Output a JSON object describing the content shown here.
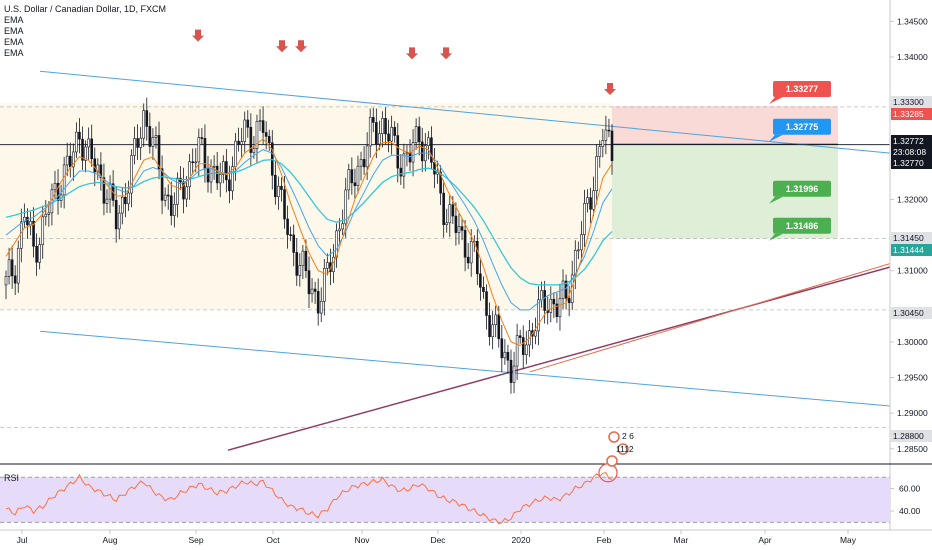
{
  "header": {
    "symbol_title": "U.S. Dollar / Canadian Dollar, 1D, FXCM",
    "indicators": [
      "EMA",
      "EMA",
      "EMA",
      "EMA"
    ]
  },
  "rsi_panel": {
    "label": "RSI"
  },
  "colors": {
    "up": "#ffffff",
    "down": "#131722",
    "ema_fast": "#f57f17",
    "ema_mid": "#42a5f5",
    "ema_slow": "#26c6da",
    "channel": "#4fa3e0",
    "trendline": "#8e3b64",
    "trendline2": "#e26a4c",
    "rsi_line": "#ff7043",
    "rsi_band": "#e6dcfa",
    "arrow": "#d9534f",
    "loss_zone": "#f9d6d3",
    "profit_zone": "#dcedd3"
  },
  "chart_data": [
    {
      "type": "candlestick",
      "title": "U.S. Dollar / Canadian Dollar, 1D, FXCM",
      "x_axis_labels": [
        "Jul",
        "Aug",
        "Sep",
        "Oct",
        "Nov",
        "Dec",
        "2020",
        "Feb",
        "Mar",
        "Apr",
        "May"
      ],
      "y_tick_labels": [
        "1.34500",
        "1.34000",
        "1.32000",
        "1.31000",
        "1.30000",
        "1.29500",
        "1.29000",
        "1.28500"
      ],
      "price_tags": [
        {
          "value": "1.33300",
          "style": "gray"
        },
        {
          "value": "1.33285",
          "style": "red"
        },
        {
          "value": "1.32772",
          "style": "black"
        },
        {
          "value": "23:08:08",
          "style": "black"
        },
        {
          "value": "1.32770",
          "style": "black"
        },
        {
          "value": "1.31450",
          "style": "gray"
        },
        {
          "value": "1.31444",
          "style": "green"
        },
        {
          "value": "1.30450",
          "style": "gray"
        },
        {
          "value": "1.28800",
          "style": "gray"
        }
      ],
      "position_labels": [
        {
          "value": "1.33277",
          "kind": "stop"
        },
        {
          "value": "1.32775",
          "kind": "entry"
        },
        {
          "value": "1.31996",
          "kind": "target"
        },
        {
          "value": "1.31486",
          "kind": "target"
        }
      ],
      "horizontal_levels": [
        1.333,
        1.3277,
        1.3145,
        1.3045,
        1.288
      ],
      "ylim": [
        1.283,
        1.348
      ],
      "ohlc_close_path": [
        1.308,
        1.311,
        1.318,
        1.313,
        1.316,
        1.32,
        1.323,
        1.325,
        1.3295,
        1.326,
        1.324,
        1.321,
        1.317,
        1.321,
        1.326,
        1.332,
        1.328,
        1.322,
        1.319,
        1.321,
        1.3245,
        1.327,
        1.325,
        1.323,
        1.323,
        1.3265,
        1.3295,
        1.329,
        1.33,
        1.325,
        1.319,
        1.314,
        1.311,
        1.308,
        1.306,
        1.309,
        1.315,
        1.32,
        1.324,
        1.326,
        1.33,
        1.3305,
        1.328,
        1.3255,
        1.326,
        1.329,
        1.327,
        1.322,
        1.318,
        1.316,
        1.314,
        1.312,
        1.306,
        1.302,
        1.299,
        1.2965,
        1.299,
        1.301,
        1.304,
        1.306,
        1.305,
        1.306,
        1.312,
        1.317,
        1.323,
        1.329,
        1.327
      ],
      "ema_fast_closes": [
        1.312,
        1.314,
        1.316,
        1.3165,
        1.318,
        1.32,
        1.3225,
        1.3245,
        1.326,
        1.3255,
        1.324,
        1.322,
        1.3205,
        1.3205,
        1.323,
        1.3255,
        1.326,
        1.324,
        1.322,
        1.3215,
        1.323,
        1.325,
        1.325,
        1.324,
        1.3235,
        1.3245,
        1.3265,
        1.3275,
        1.3285,
        1.327,
        1.3235,
        1.3195,
        1.316,
        1.3125,
        1.31,
        1.3095,
        1.312,
        1.316,
        1.32,
        1.323,
        1.326,
        1.328,
        1.328,
        1.327,
        1.3265,
        1.3275,
        1.327,
        1.3245,
        1.3215,
        1.319,
        1.3165,
        1.314,
        1.3105,
        1.3065,
        1.303,
        1.3,
        1.2995,
        1.3005,
        1.3025,
        1.3045,
        1.305,
        1.3055,
        1.309,
        1.313,
        1.318,
        1.323,
        1.325
      ],
      "ema_mid_closes": [
        1.315,
        1.316,
        1.317,
        1.3175,
        1.3185,
        1.3195,
        1.321,
        1.3225,
        1.324,
        1.324,
        1.3235,
        1.3225,
        1.3215,
        1.321,
        1.322,
        1.324,
        1.3245,
        1.324,
        1.3228,
        1.3222,
        1.3228,
        1.324,
        1.3245,
        1.324,
        1.3236,
        1.324,
        1.3252,
        1.3262,
        1.327,
        1.3265,
        1.3245,
        1.3218,
        1.319,
        1.316,
        1.3135,
        1.312,
        1.313,
        1.3155,
        1.3185,
        1.321,
        1.3235,
        1.3255,
        1.3262,
        1.3262,
        1.326,
        1.3265,
        1.3265,
        1.3252,
        1.3232,
        1.3212,
        1.3192,
        1.317,
        1.3142,
        1.311,
        1.308,
        1.3055,
        1.3045,
        1.3045,
        1.3055,
        1.3065,
        1.307,
        1.3075,
        1.3095,
        1.312,
        1.3155,
        1.3195,
        1.3215
      ],
      "ema_slow_closes": [
        1.3175,
        1.3178,
        1.3182,
        1.3185,
        1.319,
        1.3195,
        1.3202,
        1.321,
        1.3218,
        1.3222,
        1.3224,
        1.3222,
        1.3218,
        1.3216,
        1.3218,
        1.3225,
        1.323,
        1.3232,
        1.323,
        1.3228,
        1.3228,
        1.3232,
        1.3236,
        1.3237,
        1.3236,
        1.3238,
        1.3243,
        1.3249,
        1.3255,
        1.3256,
        1.325,
        1.3238,
        1.3222,
        1.3204,
        1.3186,
        1.3172,
        1.3168,
        1.3172,
        1.3183,
        1.3196,
        1.321,
        1.3224,
        1.3232,
        1.3236,
        1.3238,
        1.3242,
        1.3244,
        1.324,
        1.323,
        1.3218,
        1.3204,
        1.3189,
        1.317,
        1.3148,
        1.3125,
        1.3104,
        1.309,
        1.3082,
        1.308,
        1.308,
        1.308,
        1.3082,
        1.309,
        1.3102,
        1.312,
        1.3142,
        1.3155
      ]
    },
    {
      "type": "line",
      "title": "RSI",
      "y_tick_labels": [
        "60.00",
        "40.00"
      ],
      "band": [
        30,
        70
      ],
      "ylim": [
        25,
        80
      ],
      "values": [
        42,
        38,
        45,
        40,
        44,
        52,
        58,
        64,
        70,
        62,
        58,
        54,
        50,
        56,
        62,
        66,
        58,
        52,
        50,
        56,
        60,
        64,
        60,
        56,
        58,
        62,
        66,
        64,
        66,
        58,
        50,
        44,
        42,
        38,
        36,
        42,
        52,
        58,
        62,
        64,
        66,
        68,
        62,
        58,
        60,
        64,
        60,
        54,
        50,
        48,
        44,
        40,
        36,
        32,
        30,
        34,
        42,
        46,
        50,
        52,
        50,
        54,
        60,
        64,
        70,
        74,
        68
      ]
    }
  ]
}
